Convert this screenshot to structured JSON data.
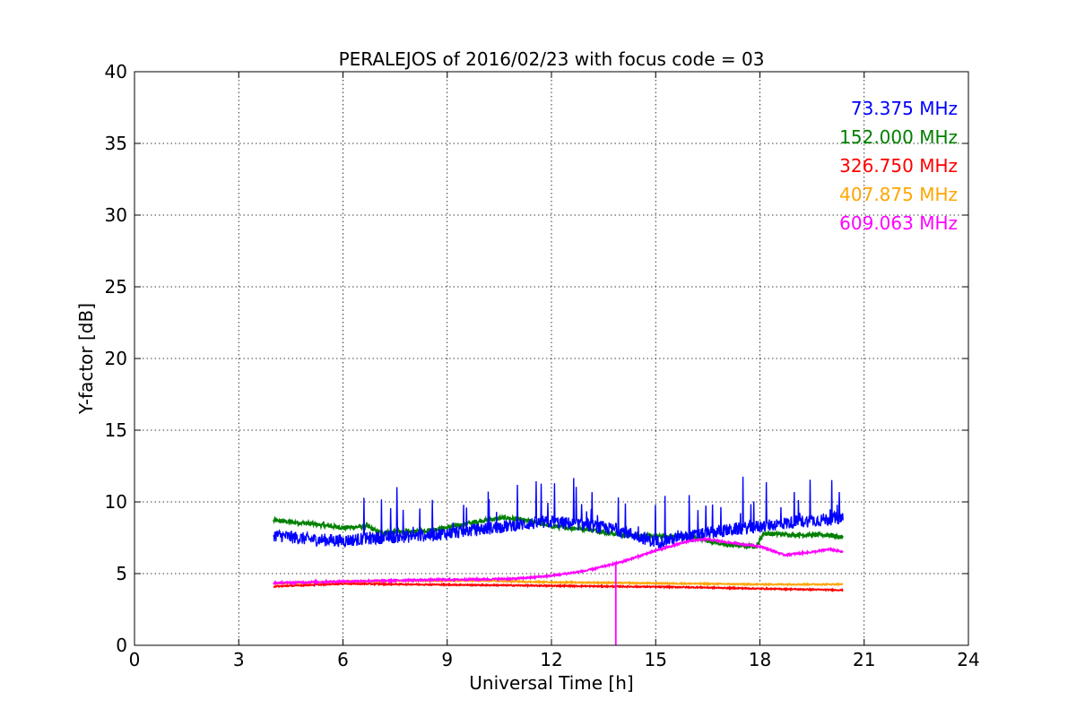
{
  "chart_data": {
    "type": "line",
    "title": "PERALEJOS of 2016/02/23 with focus code = 03",
    "xlabel": "Universal Time [h]",
    "ylabel": "Y-factor [dB]",
    "xlim": [
      0,
      24
    ],
    "ylim": [
      0,
      40
    ],
    "xticks": [
      0,
      3,
      6,
      9,
      12,
      15,
      18,
      21,
      24
    ],
    "yticks": [
      0,
      5,
      10,
      15,
      20,
      25,
      30,
      35,
      40
    ],
    "xtick_labels": [
      "0",
      "3",
      "6",
      "9",
      "12",
      "15",
      "18",
      "21",
      "24"
    ],
    "ytick_labels": [
      "0",
      "5",
      "10",
      "15",
      "20",
      "25",
      "30",
      "35",
      "40"
    ],
    "grid": true,
    "legend_position": "top-right",
    "series": [
      {
        "name": "73.375 MHz",
        "color": "#0000ff",
        "noise": 0.45,
        "spikes": true,
        "x": [
          4.0,
          5.0,
          6.0,
          7.0,
          8.0,
          9.0,
          10.0,
          11.0,
          12.0,
          13.0,
          14.0,
          15.0,
          16.0,
          17.0,
          18.0,
          19.0,
          20.0,
          20.4
        ],
        "y": [
          7.7,
          7.4,
          7.3,
          7.5,
          7.6,
          7.8,
          8.1,
          8.4,
          8.6,
          8.4,
          8.0,
          7.2,
          7.6,
          8.0,
          8.3,
          8.6,
          8.8,
          8.9
        ]
      },
      {
        "name": "152.000 MHz",
        "color": "#008000",
        "noise": 0.15,
        "spikes": false,
        "x": [
          4.0,
          5.0,
          6.0,
          6.7,
          7.0,
          8.0,
          9.0,
          10.0,
          10.7,
          11.5,
          12.0,
          13.0,
          14.0,
          15.0,
          16.0,
          17.0,
          17.9,
          18.1,
          19.0,
          20.0,
          20.4
        ],
        "y": [
          8.7,
          8.5,
          8.2,
          8.3,
          7.9,
          7.9,
          8.2,
          8.7,
          8.9,
          8.6,
          8.3,
          8.1,
          7.7,
          7.6,
          7.6,
          7.0,
          6.9,
          7.8,
          7.7,
          7.7,
          7.5
        ]
      },
      {
        "name": "326.750 MHz",
        "color": "#ff0000",
        "noise": 0.04,
        "spikes": false,
        "x": [
          4.0,
          6.0,
          8.0,
          10.0,
          12.0,
          14.0,
          16.0,
          18.0,
          20.4
        ],
        "y": [
          4.1,
          4.3,
          4.25,
          4.2,
          4.15,
          4.1,
          4.05,
          3.95,
          3.85
        ]
      },
      {
        "name": "407.875 MHz",
        "color": "#ffa500",
        "noise": 0.04,
        "spikes": false,
        "x": [
          4.0,
          6.0,
          8.0,
          10.0,
          12.0,
          14.0,
          16.0,
          18.0,
          20.4
        ],
        "y": [
          4.3,
          4.45,
          4.5,
          4.5,
          4.4,
          4.35,
          4.3,
          4.25,
          4.25
        ]
      },
      {
        "name": "609.063 MHz",
        "color": "#ff00ff",
        "noise": 0.06,
        "spikes": false,
        "dip": {
          "x": 13.85,
          "y": 0.0
        },
        "x": [
          4.0,
          6.0,
          8.0,
          10.0,
          11.0,
          12.0,
          13.0,
          14.0,
          15.0,
          16.0,
          16.5,
          17.0,
          18.0,
          18.7,
          19.5,
          20.0,
          20.4
        ],
        "y": [
          4.35,
          4.45,
          4.55,
          4.6,
          4.65,
          4.85,
          5.2,
          5.8,
          6.6,
          7.3,
          7.4,
          7.2,
          6.9,
          6.3,
          6.5,
          6.7,
          6.5
        ]
      }
    ]
  }
}
